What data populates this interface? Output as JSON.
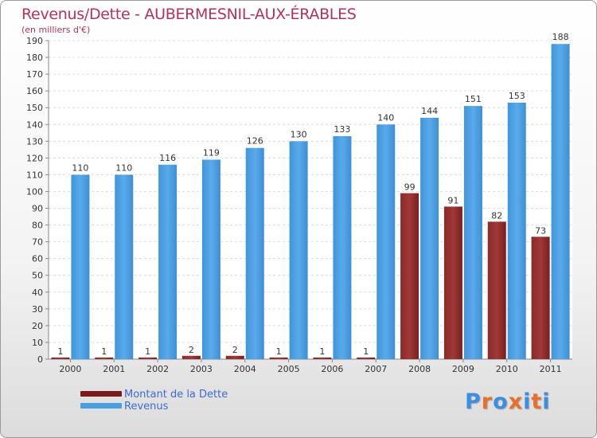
{
  "chart_data": {
    "type": "bar",
    "title": "Revenus/Dette - AUBERMESNIL-AUX-ÉRABLES",
    "subtitle": "(en milliers d'€)",
    "categories": [
      "2000",
      "2001",
      "2002",
      "2003",
      "2004",
      "2005",
      "2006",
      "2007",
      "2008",
      "2009",
      "2010",
      "2011"
    ],
    "series": [
      {
        "name": "Montant de la Dette",
        "color": "#7a1a1a",
        "values": [
          1,
          1,
          1,
          2,
          2,
          1,
          1,
          1,
          99,
          91,
          82,
          73
        ]
      },
      {
        "name": "Revenus",
        "color": "#4a9fe0",
        "values": [
          110,
          110,
          116,
          119,
          126,
          130,
          133,
          140,
          144,
          151,
          153,
          188
        ]
      }
    ],
    "ylim": [
      0,
      190
    ],
    "yticks": [
      0,
      10,
      20,
      30,
      40,
      50,
      60,
      70,
      80,
      90,
      100,
      110,
      120,
      130,
      140,
      150,
      160,
      170,
      180,
      190
    ],
    "xlabel": "",
    "ylabel": "",
    "grid": true,
    "legend_position": "bottom-left"
  },
  "logo": {
    "text": "Proxiti",
    "letter_colors": [
      "#3c8ee0",
      "#e8702a",
      "#3c8ee0",
      "#e8702a",
      "#3c8ee0",
      "#e8702a",
      "#3c8ee0"
    ]
  }
}
